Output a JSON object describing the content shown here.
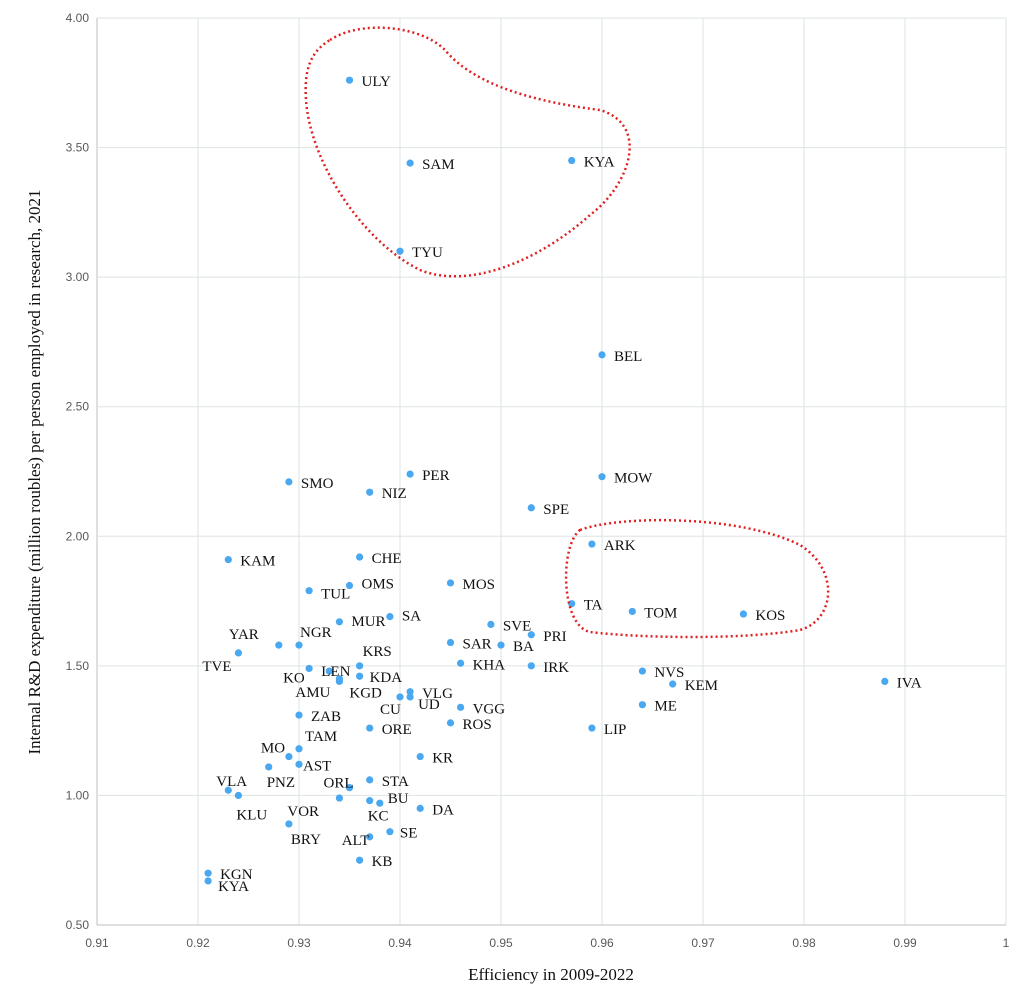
{
  "chart_data": {
    "type": "scatter",
    "xlabel": "Efficiency in 2009-2022",
    "ylabel": "Internal R&D expenditure (million roubles) per person employed in research, 2021",
    "xlim": [
      0.91,
      1.0
    ],
    "ylim": [
      0.5,
      4.0
    ],
    "x_ticks": [
      "0.91",
      "0.92",
      "0.93",
      "0.94",
      "0.95",
      "0.96",
      "0.97",
      "0.98",
      "0.99",
      "1"
    ],
    "y_ticks": [
      "0.50",
      "1.00",
      "1.50",
      "2.00",
      "2.50",
      "3.00",
      "3.50",
      "4.00"
    ],
    "grid": true,
    "point_color": "#4aa8f0",
    "annotation_color": "#e02020",
    "annotations": [
      "dotted outline around ULY, SAM, KYA, TYU",
      "dotted outline around ARK, TA, TOM, KOS"
    ],
    "points": [
      {
        "label": "ULY",
        "x": 0.935,
        "y": 3.76
      },
      {
        "label": "SAM",
        "x": 0.941,
        "y": 3.44
      },
      {
        "label": "KYA",
        "x": 0.957,
        "y": 3.45
      },
      {
        "label": "TYU",
        "x": 0.94,
        "y": 3.1
      },
      {
        "label": "BEL",
        "x": 0.96,
        "y": 2.7
      },
      {
        "label": "PER",
        "x": 0.941,
        "y": 2.24
      },
      {
        "label": "SMO",
        "x": 0.929,
        "y": 2.21
      },
      {
        "label": "NIZ",
        "x": 0.937,
        "y": 2.17
      },
      {
        "label": "MOW",
        "x": 0.96,
        "y": 2.23
      },
      {
        "label": "SPE",
        "x": 0.953,
        "y": 2.11
      },
      {
        "label": "ARK",
        "x": 0.959,
        "y": 1.97
      },
      {
        "label": "KAM",
        "x": 0.923,
        "y": 1.91
      },
      {
        "label": "CHE",
        "x": 0.936,
        "y": 1.92
      },
      {
        "label": "TUL",
        "x": 0.931,
        "y": 1.79
      },
      {
        "label": "OMS",
        "x": 0.935,
        "y": 1.81
      },
      {
        "label": "MOS",
        "x": 0.945,
        "y": 1.82
      },
      {
        "label": "MUR",
        "x": 0.934,
        "y": 1.67
      },
      {
        "label": "SA",
        "x": 0.939,
        "y": 1.69
      },
      {
        "label": "SVE",
        "x": 0.949,
        "y": 1.66
      },
      {
        "label": "PRI",
        "x": 0.953,
        "y": 1.62
      },
      {
        "label": "TA",
        "x": 0.957,
        "y": 1.74
      },
      {
        "label": "TOM",
        "x": 0.963,
        "y": 1.71
      },
      {
        "label": "KOS",
        "x": 0.974,
        "y": 1.7
      },
      {
        "label": "YAR",
        "x": 0.928,
        "y": 1.58
      },
      {
        "label": "NGR",
        "x": 0.93,
        "y": 1.58
      },
      {
        "label": "TVE",
        "x": 0.924,
        "y": 1.55
      },
      {
        "label": "SAR",
        "x": 0.945,
        "y": 1.59
      },
      {
        "label": "BA",
        "x": 0.95,
        "y": 1.58
      },
      {
        "label": "KO",
        "x": 0.931,
        "y": 1.49
      },
      {
        "label": "LEN",
        "x": 0.933,
        "y": 1.48
      },
      {
        "label": "KRS",
        "x": 0.936,
        "y": 1.5
      },
      {
        "label": "KHA",
        "x": 0.946,
        "y": 1.51
      },
      {
        "label": "IRK",
        "x": 0.953,
        "y": 1.5
      },
      {
        "label": "AMU",
        "x": 0.934,
        "y": 1.45
      },
      {
        "label": "KGD",
        "x": 0.934,
        "y": 1.44
      },
      {
        "label": "KDA",
        "x": 0.936,
        "y": 1.46
      },
      {
        "label": "VLG",
        "x": 0.941,
        "y": 1.4
      },
      {
        "label": "CU",
        "x": 0.94,
        "y": 1.38
      },
      {
        "label": "UD",
        "x": 0.941,
        "y": 1.38
      },
      {
        "label": "VGG",
        "x": 0.946,
        "y": 1.34
      },
      {
        "label": "ROS",
        "x": 0.945,
        "y": 1.28
      },
      {
        "label": "ZAB",
        "x": 0.93,
        "y": 1.31
      },
      {
        "label": "ORE",
        "x": 0.937,
        "y": 1.26
      },
      {
        "label": "NVS",
        "x": 0.964,
        "y": 1.48
      },
      {
        "label": "KEM",
        "x": 0.967,
        "y": 1.43
      },
      {
        "label": "IVA",
        "x": 0.988,
        "y": 1.44
      },
      {
        "label": "ME",
        "x": 0.964,
        "y": 1.35
      },
      {
        "label": "LIP",
        "x": 0.959,
        "y": 1.26
      },
      {
        "label": "TAM",
        "x": 0.93,
        "y": 1.18
      },
      {
        "label": "MO",
        "x": 0.929,
        "y": 1.15
      },
      {
        "label": "AST",
        "x": 0.93,
        "y": 1.12
      },
      {
        "label": "PNZ",
        "x": 0.927,
        "y": 1.11
      },
      {
        "label": "KR",
        "x": 0.942,
        "y": 1.15
      },
      {
        "label": "STA",
        "x": 0.937,
        "y": 1.06
      },
      {
        "label": "VLA",
        "x": 0.923,
        "y": 1.02
      },
      {
        "label": "KLU",
        "x": 0.924,
        "y": 1.0
      },
      {
        "label": "ORL",
        "x": 0.935,
        "y": 1.03
      },
      {
        "label": "VOR",
        "x": 0.934,
        "y": 0.99
      },
      {
        "label": "KC",
        "x": 0.937,
        "y": 0.98
      },
      {
        "label": "BU",
        "x": 0.938,
        "y": 0.97
      },
      {
        "label": "DA",
        "x": 0.942,
        "y": 0.95
      },
      {
        "label": "BRY",
        "x": 0.929,
        "y": 0.89
      },
      {
        "label": "SE",
        "x": 0.939,
        "y": 0.86
      },
      {
        "label": "ALT",
        "x": 0.937,
        "y": 0.84
      },
      {
        "label": "KB",
        "x": 0.936,
        "y": 0.75
      },
      {
        "label": "KGN",
        "x": 0.921,
        "y": 0.7
      },
      {
        "label": "KYA",
        "x": 0.921,
        "y": 0.67
      }
    ]
  }
}
